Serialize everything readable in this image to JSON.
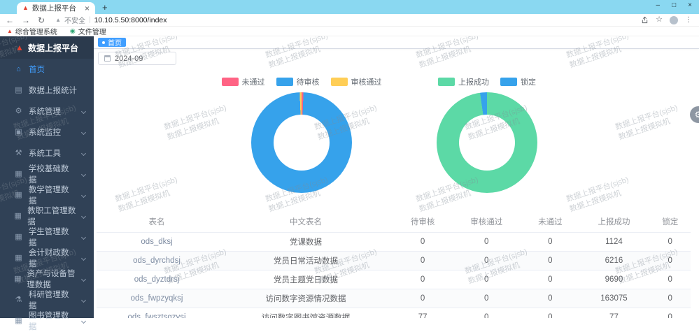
{
  "browser": {
    "tab": {
      "title": "数据上报平台",
      "close_glyph": "×"
    },
    "new_tab_glyph": "+",
    "window_controls": [
      "–",
      "□",
      "×"
    ],
    "nav": {
      "back": "←",
      "forward": "→",
      "reload": "↻"
    },
    "address": {
      "warning_glyph": "▲",
      "warning_text": "不安全",
      "divider": "|",
      "url": "10.10.5.50:8000/index"
    },
    "action_icons": {
      "star": "☆",
      "menu": "⋮"
    },
    "bookmarks": [
      {
        "glyph": "▲",
        "label": "综合管理系统"
      },
      {
        "glyph": "◉",
        "label": "文件管理"
      }
    ]
  },
  "sidebar": {
    "logo_glyph": "▲",
    "logo_title": "数据上报平台",
    "items": [
      {
        "label": "首页",
        "glyph": "⌂",
        "active": true,
        "expandable": false
      },
      {
        "label": "数据上报统计",
        "glyph": "▤",
        "expandable": false
      },
      {
        "label": "系统管理",
        "glyph": "⚙",
        "expandable": true
      },
      {
        "label": "系统监控",
        "glyph": "▣",
        "expandable": true
      },
      {
        "label": "系统工具",
        "glyph": "⚒",
        "expandable": true
      },
      {
        "label": "学校基础数据",
        "glyph": "▦",
        "expandable": true
      },
      {
        "label": "教学管理数据",
        "glyph": "▦",
        "expandable": true
      },
      {
        "label": "教职工管理数据",
        "glyph": "▦",
        "expandable": true
      },
      {
        "label": "学生管理数据",
        "glyph": "▦",
        "expandable": true
      },
      {
        "label": "会计财政数据",
        "glyph": "▦",
        "expandable": true
      },
      {
        "label": "资产与设备管理数据",
        "glyph": "▦",
        "expandable": true
      },
      {
        "label": "科研管理数据",
        "glyph": "⚗",
        "expandable": true
      },
      {
        "label": "图书管理数据",
        "glyph": "▦",
        "expandable": true,
        "clipped": true
      }
    ]
  },
  "tags": {
    "active": "首页"
  },
  "filters": {
    "month": "2024-09"
  },
  "chart_data": [
    {
      "type": "pie",
      "variant": "donut",
      "title": "",
      "labels": [
        "未通过",
        "待审核",
        "审核通过"
      ],
      "values_percent": [
        0.6,
        98.8,
        0.6
      ],
      "colors": [
        "#FF6384",
        "#36A2EB",
        "#FFCE56"
      ],
      "legend_position": "top"
    },
    {
      "type": "pie",
      "variant": "donut",
      "title": "",
      "labels": [
        "上报成功",
        "锁定"
      ],
      "values_percent": [
        97.8,
        2.2
      ],
      "colors": [
        "#5CD9A6",
        "#36A2EB"
      ],
      "legend_position": "top"
    }
  ],
  "table": {
    "headers": [
      "表名",
      "中文表名",
      "待审核",
      "审核通过",
      "未通过",
      "上报成功",
      "锁定"
    ],
    "rows": [
      [
        "ods_dksj",
        "党课数据",
        "0",
        "0",
        "0",
        "1124",
        "0"
      ],
      [
        "ods_dyrchdsj",
        "党员日常活动数据",
        "0",
        "0",
        "0",
        "6216",
        "0"
      ],
      [
        "ods_dyztdrsj",
        "党员主题党日数据",
        "0",
        "0",
        "0",
        "9690",
        "0"
      ],
      [
        "ods_fwpzyqksj",
        "访问数字资源情况数据",
        "0",
        "0",
        "0",
        "163075",
        "0"
      ],
      [
        "ods_fwsztsgzysj",
        "访问数字图书馆资源数据",
        "77",
        "0",
        "0",
        "77",
        "0"
      ]
    ]
  },
  "watermark": {
    "line1": "数据上报平台(sjsb)",
    "line2": "数据上报模拟机"
  },
  "floating": {
    "gear_glyph": "⚙"
  }
}
